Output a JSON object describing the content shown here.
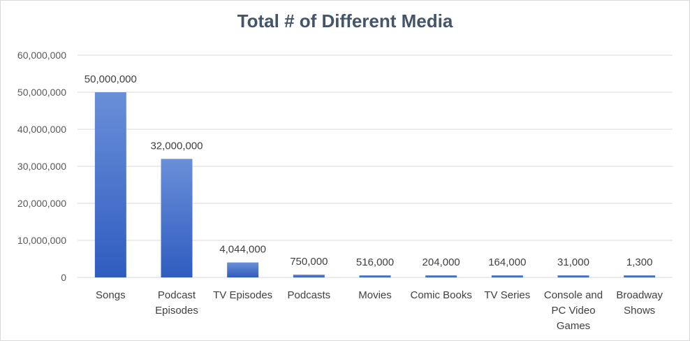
{
  "chart_data": {
    "type": "bar",
    "title": "Total # of Different Media",
    "xlabel": "",
    "ylabel": "",
    "ylim": [
      0,
      60000000
    ],
    "yticks": [
      0,
      10000000,
      20000000,
      30000000,
      40000000,
      50000000,
      60000000
    ],
    "ytick_labels": [
      "0",
      "10,000,000",
      "20,000,000",
      "30,000,000",
      "40,000,000",
      "50,000,000",
      "60,000,000"
    ],
    "grid": true,
    "legend": "none",
    "categories": [
      [
        "Songs"
      ],
      [
        "Podcast",
        "Episodes"
      ],
      [
        "TV Episodes"
      ],
      [
        "Podcasts"
      ],
      [
        "Movies"
      ],
      [
        "Comic Books"
      ],
      [
        "TV Series"
      ],
      [
        "Console and",
        "PC Video",
        "Games"
      ],
      [
        "Broadway",
        "Shows"
      ]
    ],
    "values": [
      50000000,
      32000000,
      4044000,
      750000,
      516000,
      204000,
      164000,
      31000,
      1300
    ],
    "data_labels": [
      "50,000,000",
      "32,000,000",
      "4,044,000",
      "750,000",
      "516,000",
      "204,000",
      "164,000",
      "31,000",
      "1,300"
    ],
    "colors": {
      "bar_top": "#6a8fd8",
      "bar_bottom": "#2f5cc0",
      "title": "#44546a"
    }
  }
}
